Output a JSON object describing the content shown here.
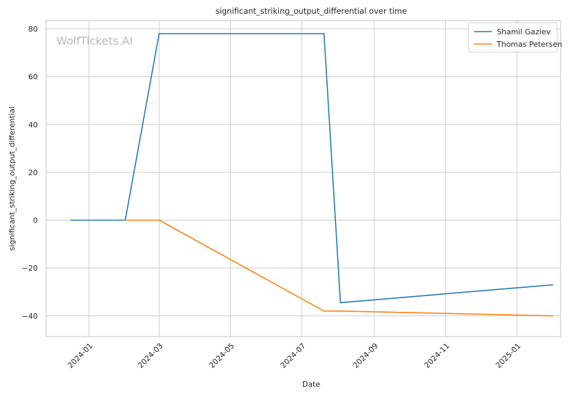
{
  "chart_data": {
    "type": "line",
    "title": "significant_striking_output_differential over time",
    "xlabel": "Date",
    "ylabel": "significant_striking_output_differential",
    "x_ticks": [
      "2024-01",
      "2024-03",
      "2024-05",
      "2024-07",
      "2024-09",
      "2024-11",
      "2025-01"
    ],
    "y_ticks": [
      80,
      60,
      40,
      20,
      0,
      -20,
      -40
    ],
    "ylim": [
      -49,
      82
    ],
    "grid": true,
    "legend_position": "top-right",
    "watermark": "WolfTickets.AI",
    "series": [
      {
        "name": "Shamil Gaziev",
        "color": "#1f77b4",
        "points": [
          {
            "x": "2023-12-16",
            "y": 0
          },
          {
            "x": "2024-02-01",
            "y": 0
          },
          {
            "x": "2024-03-01",
            "y": 78
          },
          {
            "x": "2024-07-20",
            "y": 78
          },
          {
            "x": "2024-08-03",
            "y": -34.5
          },
          {
            "x": "2025-02-01",
            "y": -27
          }
        ]
      },
      {
        "name": "Thomas Petersen",
        "color": "#ff7f0e",
        "points": [
          {
            "x": "2024-02-01",
            "y": 0
          },
          {
            "x": "2024-03-01",
            "y": 0
          },
          {
            "x": "2024-07-20",
            "y": -38
          },
          {
            "x": "2024-08-03",
            "y": -38
          },
          {
            "x": "2025-02-01",
            "y": -40
          }
        ]
      }
    ]
  }
}
